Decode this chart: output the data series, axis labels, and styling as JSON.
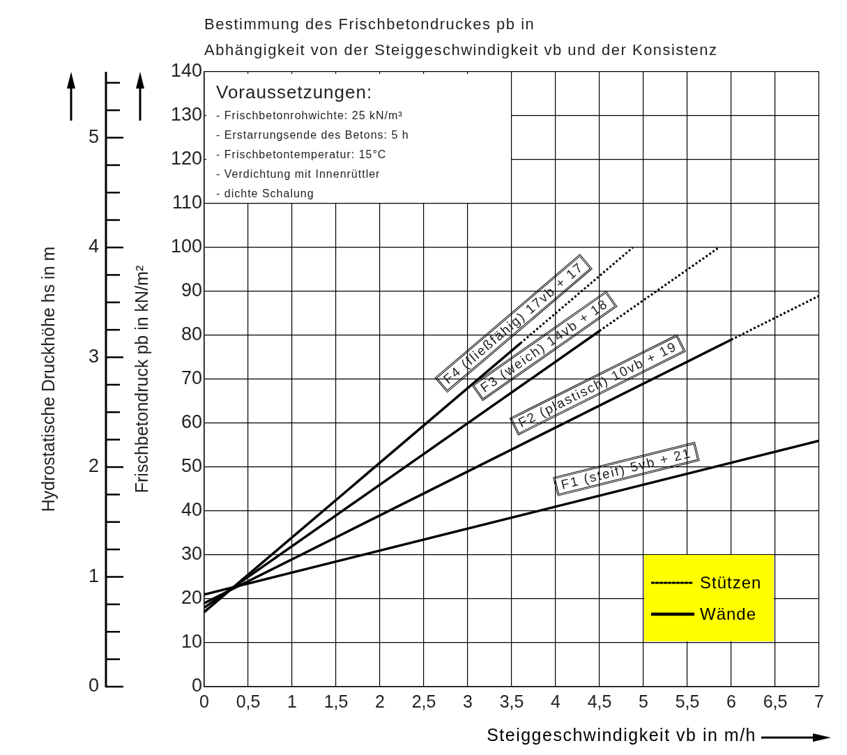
{
  "chart_data": {
    "type": "line",
    "title": "Bestimmung des Frischbetondruckes pb in\nAbhängigkeit von der Steiggeschwindigkeit vb und der Konsistenz",
    "xlabel": "Steiggeschwindigkeit vb in m/h",
    "ylabel": "Frischbetondruck pb in kN/m²",
    "y2label": "Hydrostatische Druckhöhe hs in m",
    "xlim": [
      0,
      7
    ],
    "xticks": [
      0,
      {
        "value": 0.5,
        "label": "0,5"
      },
      1,
      {
        "value": 1.5,
        "label": "1,5"
      },
      2,
      {
        "value": 2.5,
        "label": "2,5"
      },
      3,
      {
        "value": 3.5,
        "label": "3,5"
      },
      4,
      {
        "value": 4.5,
        "label": "4,5"
      },
      5,
      {
        "value": 5.5,
        "label": "5,5"
      },
      6,
      {
        "value": 6.5,
        "label": "6,5"
      },
      7
    ],
    "ylim": [
      0,
      140
    ],
    "yticks": [
      0,
      10,
      20,
      30,
      40,
      50,
      60,
      70,
      80,
      90,
      100,
      110,
      120,
      130,
      140
    ],
    "y2lim": [
      0,
      5.6
    ],
    "y2ticks": [
      0,
      1,
      2,
      3,
      4,
      5
    ],
    "grid": true,
    "legend": "bottom right",
    "marker": "none",
    "series": [
      {
        "name": "Wände",
        "color": "#000000",
        "line_style": "solid",
        "x": [
          0,
          7
        ],
        "values": [
          21,
          56
        ]
      },
      {
        "color": "#000000",
        "line_style": "solid",
        "x": [
          0,
          6
        ],
        "values": [
          19,
          79
        ]
      },
      {
        "name": "Stützen",
        "color": "#000000",
        "line_style": "dotted",
        "x": [
          6,
          7
        ],
        "values": [
          79,
          89
        ]
      },
      {
        "color": "#000000",
        "line_style": "solid",
        "x": [
          0,
          4.5
        ],
        "values": [
          18,
          81
        ]
      },
      {
        "color": "#000000",
        "line_style": "dotted",
        "x": [
          4.5,
          5.86
        ],
        "values": [
          81,
          100
        ]
      },
      {
        "color": "#000000",
        "line_style": "solid",
        "x": [
          0,
          3.6
        ],
        "values": [
          17,
          78.2
        ]
      },
      {
        "color": "#000000",
        "line_style": "dotted",
        "x": [
          3.6,
          4.88
        ],
        "values": [
          78.2,
          100
        ]
      }
    ],
    "annotations": [
      "Voraussetzungen:",
      "- Frischbetonrohwichte: 25 kN/m³",
      "- Erstarrungsende des Betons: 5 h",
      "- Frischbetontemperatur: 15°C",
      "- Verdichtung mit Innenrüttler",
      "- dichte Schalung",
      {
        "text": "F4 (fließfähig) 17vb + 17",
        "x": 3.67,
        "y": 79.4
      },
      {
        "text": "F3 (weich) 14vb + 18",
        "x": 4.0,
        "y": 74
      },
      {
        "text": "F2 (plastisch) 10vb + 19",
        "x": 4.58,
        "y": 64.8
      },
      {
        "text": "F1 (steif) 5vb + 21",
        "x": 4.86,
        "y": 45.3
      }
    ]
  }
}
